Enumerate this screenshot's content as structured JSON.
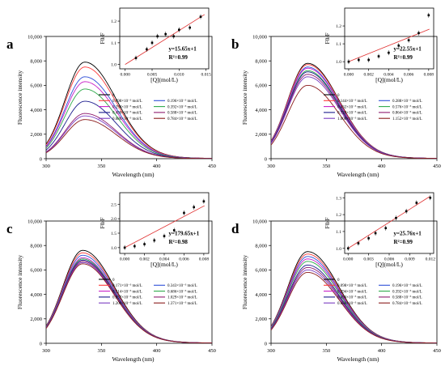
{
  "chart_data": [
    {
      "type": "line",
      "panel_label": "a",
      "xlabel": "Wavelength (nm)",
      "ylabel": "Fluorescence intensity",
      "xlim": [
        300,
        450
      ],
      "ylim": [
        0,
        10000
      ],
      "x_ticks": [
        "300",
        "350",
        "400",
        "450"
      ],
      "y_ticks": [
        "0",
        "2,000",
        "4,000",
        "6,000",
        "8,000",
        "10,000"
      ],
      "peak_x": 335,
      "legend_columns": 2,
      "series": [
        {
          "name": "0",
          "color": "#000000",
          "peak": 7900
        },
        {
          "name": "0.098×10⁻³ mol/L",
          "color": "#ff3b3b",
          "peak": 7500
        },
        {
          "name": "0.196×10⁻³ mol/L",
          "color": "#2f4fd8",
          "peak": 6700
        },
        {
          "name": "0.294×10⁻³ mol/L",
          "color": "#c81ec8",
          "peak": 6300
        },
        {
          "name": "0.392×10⁻³ mol/L",
          "color": "#2eaa4a",
          "peak": 5700
        },
        {
          "name": "0.490×10⁻³ mol/L",
          "color": "#1a1a8c",
          "peak": 4700
        },
        {
          "name": "0.588×10⁻³ mol/L",
          "color": "#8e1a6e",
          "peak": 3700
        },
        {
          "name": "0.686×10⁻³ mol/L",
          "color": "#7a3cc0",
          "peak": 3500
        },
        {
          "name": "0.784×10⁻³ mol/L",
          "color": "#8b1a1a",
          "peak": 3200
        }
      ],
      "inset": {
        "xlabel": "[Q](mol/L)",
        "ylabel": "F0/F",
        "xlim": [
          -0.001,
          0.0155
        ],
        "ylim": [
          0.98,
          1.26
        ],
        "x_ticks": [
          "0.000",
          "0.005",
          "0.010",
          "0.015"
        ],
        "y_ticks": [
          "1.0",
          "1.1",
          "1.2"
        ],
        "equation": "y=15.65x+1",
        "r2": "R²=0.99",
        "slope": 15.65,
        "points": [
          [
            0.002,
            1.03
          ],
          [
            0.004,
            1.07
          ],
          [
            0.005,
            1.1
          ],
          [
            0.006,
            1.13
          ],
          [
            0.0075,
            1.14
          ],
          [
            0.009,
            1.13
          ],
          [
            0.01,
            1.16
          ],
          [
            0.012,
            1.17
          ],
          [
            0.014,
            1.22
          ]
        ]
      }
    },
    {
      "type": "line",
      "panel_label": "b",
      "xlabel": "Wavelength (nm)",
      "ylabel": "Fluorescence intensity",
      "xlim": [
        300,
        450
      ],
      "ylim": [
        0,
        10000
      ],
      "x_ticks": [
        "300",
        "350",
        "400",
        "450"
      ],
      "y_ticks": [
        "0",
        "2,000",
        "4,000",
        "6,000",
        "8,000",
        "10,000"
      ],
      "peak_x": 333,
      "legend_columns": 2,
      "series": [
        {
          "name": "0",
          "color": "#000000",
          "peak": 7800
        },
        {
          "name": "0.144×10⁻³ mol/L",
          "color": "#ff3b3b",
          "peak": 7700
        },
        {
          "name": "0.288×10⁻³ mol/L",
          "color": "#2f4fd8",
          "peak": 7500
        },
        {
          "name": "0.432×10⁻³ mol/L",
          "color": "#c81ec8",
          "peak": 7400
        },
        {
          "name": "0.576×10⁻³ mol/L",
          "color": "#2eaa4a",
          "peak": 7200
        },
        {
          "name": "0.720×10⁻³ mol/L",
          "color": "#1a1a8c",
          "peak": 7100
        },
        {
          "name": "0.864×10⁻³ mol/L",
          "color": "#8e1a6e",
          "peak": 6900
        },
        {
          "name": "1.008×10⁻³ mol/L",
          "color": "#7a3cc0",
          "peak": 6700
        },
        {
          "name": "1.152×10⁻³ mol/L",
          "color": "#8b1a1a",
          "peak": 6000
        }
      ],
      "inset": {
        "xlabel": "[Q](mol/L)",
        "ylabel": "F0/F",
        "xlim": [
          -0.0004,
          0.0085
        ],
        "ylim": [
          0.96,
          1.3
        ],
        "x_ticks": [
          "0.000",
          "0.002",
          "0.004",
          "0.006",
          "0.008"
        ],
        "y_ticks": [
          "1.0",
          "1.1",
          "1.2"
        ],
        "equation": "y=22.55x+1",
        "r2": "R²=0.99",
        "slope": 22.55,
        "points": [
          [
            0.0,
            1.0
          ],
          [
            0.001,
            1.01
          ],
          [
            0.002,
            1.01
          ],
          [
            0.003,
            1.03
          ],
          [
            0.004,
            1.05
          ],
          [
            0.005,
            1.09
          ],
          [
            0.006,
            1.12
          ],
          [
            0.007,
            1.16
          ],
          [
            0.008,
            1.26
          ]
        ]
      }
    },
    {
      "type": "line",
      "panel_label": "c",
      "xlabel": "Wavelength (nm)",
      "ylabel": "Fluorescence intensity",
      "xlim": [
        300,
        450
      ],
      "ylim": [
        0,
        10000
      ],
      "x_ticks": [
        "300",
        "350",
        "400",
        "450"
      ],
      "y_ticks": [
        "0",
        "2,000",
        "4,000",
        "6,000",
        "8,000",
        "10,000"
      ],
      "peak_x": 333,
      "legend_columns": 2,
      "series": [
        {
          "name": "0",
          "color": "#000000",
          "peak": 7600
        },
        {
          "name": "0.171×10⁻³ mol/L",
          "color": "#ff3b3b",
          "peak": 7400
        },
        {
          "name": "0.343×10⁻³ mol/L",
          "color": "#2f4fd8",
          "peak": 7200
        },
        {
          "name": "0.514×10⁻³ mol/L",
          "color": "#c81ec8",
          "peak": 7000
        },
        {
          "name": "0.686×10⁻³ mol/L",
          "color": "#2eaa4a",
          "peak": 6900
        },
        {
          "name": "0.857×10⁻³ mol/L",
          "color": "#1a1a8c",
          "peak": 6800
        },
        {
          "name": "1.029×10⁻³ mol/L",
          "color": "#8e1a6e",
          "peak": 6700
        },
        {
          "name": "1.200×10⁻³ mol/L",
          "color": "#7a3cc0",
          "peak": 6600
        },
        {
          "name": "1.371×10⁻³ mol/L",
          "color": "#8b1a1a",
          "peak": 6500
        }
      ],
      "inset": {
        "xlabel": "[Q](mol/L)",
        "ylabel": "F0/F",
        "xlim": [
          -0.0005,
          0.0085
        ],
        "ylim": [
          0.8,
          2.9
        ],
        "x_ticks": [
          "0.000",
          "0.002",
          "0.004",
          "0.006",
          "0.008"
        ],
        "y_ticks": [
          "1.0",
          "1.5",
          "2.0",
          "2.5"
        ],
        "equation": "y=179.65x+1",
        "r2": "R²=0.98",
        "slope": 179.65,
        "points": [
          [
            0.0,
            1.0
          ],
          [
            0.001,
            1.05
          ],
          [
            0.002,
            1.12
          ],
          [
            0.003,
            1.25
          ],
          [
            0.004,
            1.4
          ],
          [
            0.005,
            1.6
          ],
          [
            0.006,
            2.2
          ],
          [
            0.007,
            2.4
          ],
          [
            0.008,
            2.6
          ]
        ]
      }
    },
    {
      "type": "line",
      "panel_label": "d",
      "xlabel": "Wavelength (nm)",
      "ylabel": "Fluorescence intensity",
      "xlim": [
        300,
        450
      ],
      "ylim": [
        0,
        10000
      ],
      "x_ticks": [
        "300",
        "350",
        "400",
        "450"
      ],
      "y_ticks": [
        "0",
        "2,000",
        "4,000",
        "6,000",
        "8,000",
        "10,000"
      ],
      "peak_x": 333,
      "legend_columns": 2,
      "series": [
        {
          "name": "0",
          "color": "#000000",
          "peak": 7500
        },
        {
          "name": "0.098×10⁻³ mol/L",
          "color": "#ff3b3b",
          "peak": 7300
        },
        {
          "name": "0.196×10⁻³ mol/L",
          "color": "#2f4fd8",
          "peak": 7100
        },
        {
          "name": "0.294×10⁻³ mol/L",
          "color": "#c81ec8",
          "peak": 6900
        },
        {
          "name": "0.392×10⁻³ mol/L",
          "color": "#2eaa4a",
          "peak": 6700
        },
        {
          "name": "0.490×10⁻³ mol/L",
          "color": "#1a1a8c",
          "peak": 6400
        },
        {
          "name": "0.588×10⁻³ mol/L",
          "color": "#8e1a6e",
          "peak": 6200
        },
        {
          "name": "0.686×10⁻³ mol/L",
          "color": "#7a3cc0",
          "peak": 6000
        },
        {
          "name": "0.784×10⁻³ mol/L",
          "color": "#8b1a1a",
          "peak": 5800
        }
      ],
      "inset": {
        "xlabel": "[Q](mol/L)",
        "ylabel": "F0/F",
        "xlim": [
          -0.0005,
          0.0125
        ],
        "ylim": [
          0.97,
          1.33
        ],
        "x_ticks": [
          "0.000",
          "0.003",
          "0.006",
          "0.009",
          "0.012"
        ],
        "y_ticks": [
          "1.0",
          "1.1",
          "1.2",
          "1.3"
        ],
        "equation": "y=25.76x+1",
        "r2": "R²=0.99",
        "slope": 25.76,
        "points": [
          [
            0.0,
            1.0
          ],
          [
            0.0015,
            1.03
          ],
          [
            0.003,
            1.06
          ],
          [
            0.004,
            1.09
          ],
          [
            0.0055,
            1.12
          ],
          [
            0.007,
            1.18
          ],
          [
            0.0085,
            1.22
          ],
          [
            0.01,
            1.27
          ],
          [
            0.012,
            1.3
          ]
        ]
      }
    }
  ]
}
